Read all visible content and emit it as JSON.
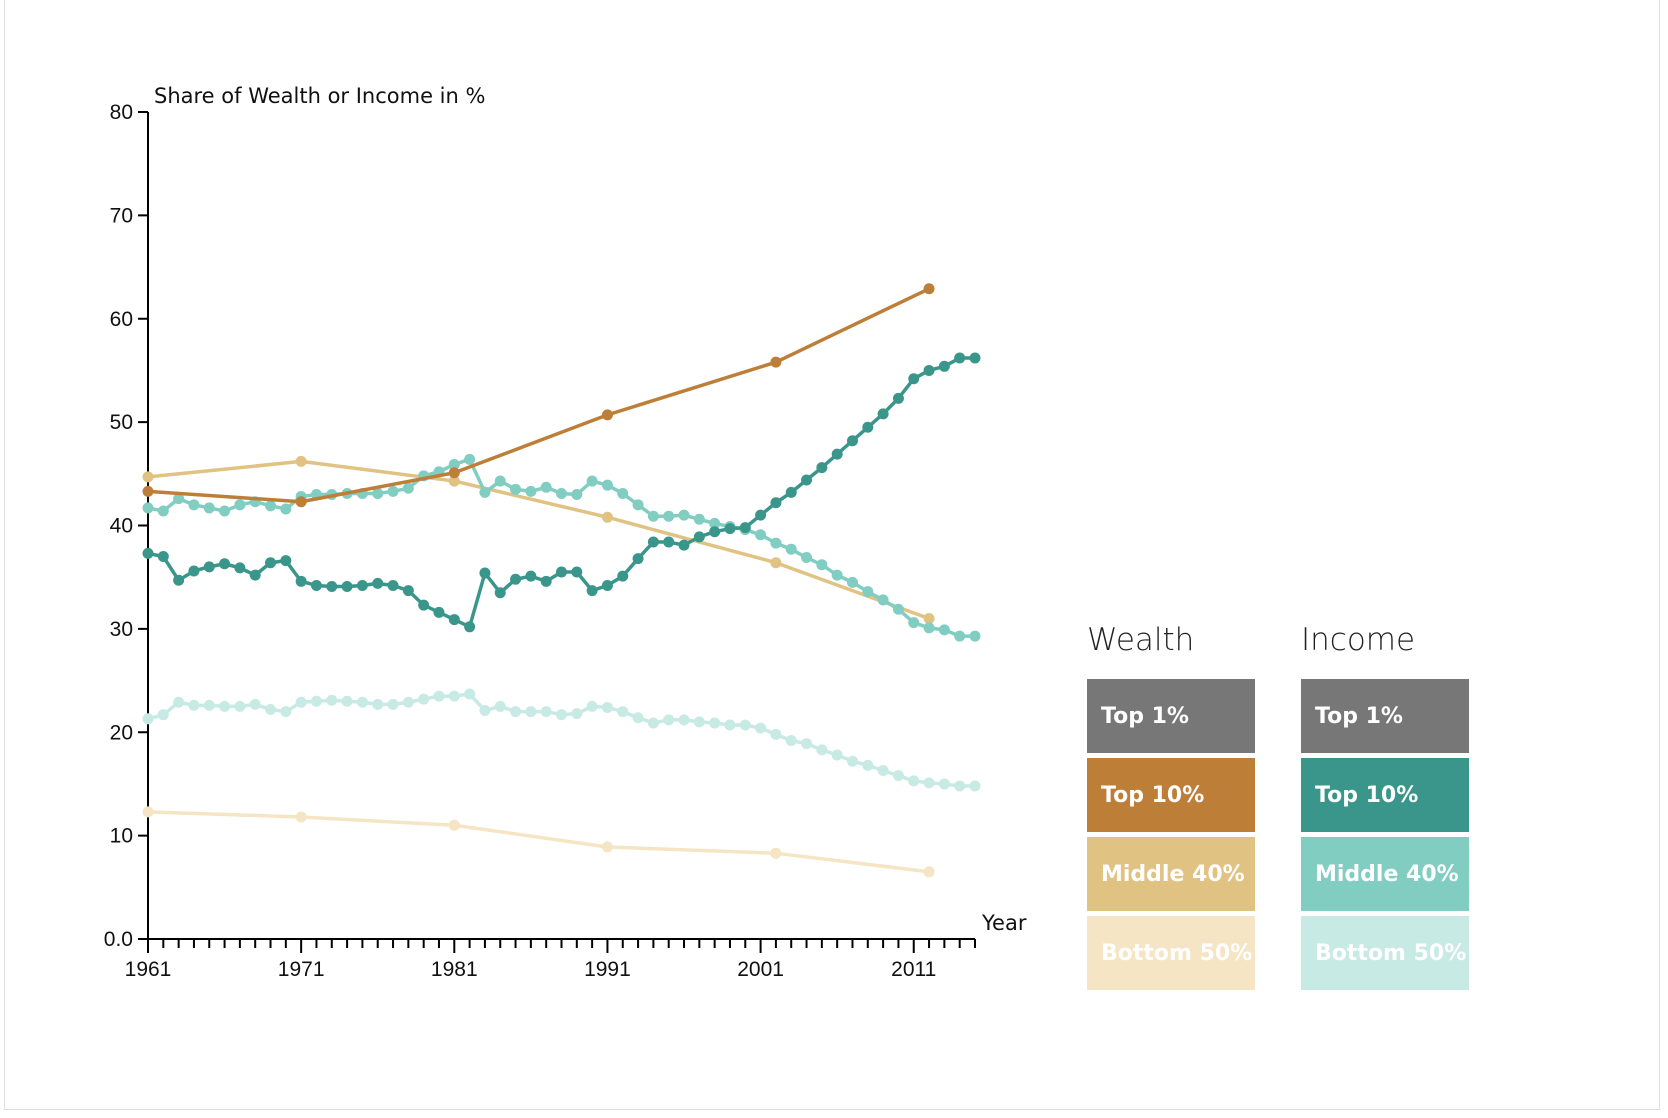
{
  "chart_data": {
    "type": "line",
    "ylabel": "Share of Wealth or Income in %",
    "xlabel": "Year",
    "ylim": [
      0,
      80
    ],
    "xlim": [
      1961,
      2015
    ],
    "y_ticks": [
      "0.0",
      "10",
      "20",
      "30",
      "40",
      "50",
      "60",
      "70",
      "80"
    ],
    "x_ticks": [
      "1961",
      "1971",
      "1981",
      "1991",
      "2001",
      "2011"
    ],
    "series": [
      {
        "name": "Wealth Middle 40%",
        "color": "#e0c283",
        "x": [
          1961,
          1971,
          1981,
          1991,
          2002,
          2012
        ],
        "y": [
          44.7,
          46.2,
          44.3,
          40.8,
          36.4,
          31.0
        ]
      },
      {
        "name": "Wealth Top 10%",
        "color": "#bd7f38",
        "x": [
          1961,
          1971,
          1981,
          1991,
          2002,
          2012
        ],
        "y": [
          43.3,
          42.3,
          45.1,
          50.7,
          55.8,
          62.9
        ]
      },
      {
        "name": "Wealth Bottom 50%",
        "color": "#f5e5c4",
        "x": [
          1961,
          1971,
          1981,
          1991,
          2002,
          2012
        ],
        "y": [
          12.3,
          11.8,
          11.0,
          8.9,
          8.3,
          6.5
        ]
      },
      {
        "name": "Income Top 10%",
        "color": "#3a968b",
        "x": [
          1961,
          1962,
          1963,
          1964,
          1965,
          1966,
          1967,
          1968,
          1969,
          1970,
          1971,
          1972,
          1973,
          1974,
          1975,
          1976,
          1977,
          1978,
          1979,
          1980,
          1981,
          1982,
          1983,
          1984,
          1985,
          1986,
          1987,
          1988,
          1989,
          1990,
          1991,
          1992,
          1993,
          1994,
          1995,
          1996,
          1997,
          1998,
          1999,
          2000,
          2001,
          2002,
          2003,
          2004,
          2005,
          2006,
          2007,
          2008,
          2009,
          2010,
          2011,
          2012,
          2013,
          2014,
          2015
        ],
        "y": [
          37.3,
          37.0,
          34.7,
          35.6,
          36.0,
          36.3,
          35.9,
          35.2,
          36.4,
          36.6,
          34.6,
          34.2,
          34.1,
          34.1,
          34.2,
          34.4,
          34.2,
          33.7,
          32.3,
          31.6,
          30.9,
          30.2,
          35.4,
          33.5,
          34.8,
          35.1,
          34.6,
          35.5,
          35.5,
          33.7,
          34.2,
          35.1,
          36.8,
          38.4,
          38.4,
          38.1,
          38.9,
          39.4,
          39.7,
          39.8,
          41.0,
          42.2,
          43.2,
          44.4,
          45.6,
          46.9,
          48.2,
          49.5,
          50.8,
          52.3,
          54.2,
          55.0,
          55.4,
          56.2,
          56.2
        ]
      },
      {
        "name": "Income Middle 40%",
        "color": "#82cdc2",
        "x": [
          1961,
          1962,
          1963,
          1964,
          1965,
          1966,
          1967,
          1968,
          1969,
          1970,
          1971,
          1972,
          1973,
          1974,
          1975,
          1976,
          1977,
          1978,
          1979,
          1980,
          1981,
          1982,
          1983,
          1984,
          1985,
          1986,
          1987,
          1988,
          1989,
          1990,
          1991,
          1992,
          1993,
          1994,
          1995,
          1996,
          1997,
          1998,
          1999,
          2000,
          2001,
          2002,
          2003,
          2004,
          2005,
          2006,
          2007,
          2008,
          2009,
          2010,
          2011,
          2012,
          2013,
          2014,
          2015
        ],
        "y": [
          41.7,
          41.4,
          42.6,
          42.0,
          41.7,
          41.4,
          42.0,
          42.3,
          41.9,
          41.6,
          42.8,
          43.0,
          43.0,
          43.1,
          43.1,
          43.1,
          43.3,
          43.6,
          44.8,
          45.2,
          45.9,
          46.4,
          43.2,
          44.3,
          43.5,
          43.3,
          43.7,
          43.1,
          43.0,
          44.3,
          43.9,
          43.1,
          42.0,
          40.9,
          40.9,
          41.0,
          40.6,
          40.2,
          39.9,
          39.6,
          39.1,
          38.3,
          37.7,
          36.9,
          36.2,
          35.2,
          34.5,
          33.6,
          32.8,
          31.9,
          30.6,
          30.1,
          29.9,
          29.3,
          29.3
        ]
      },
      {
        "name": "Income Bottom 50%",
        "color": "#c8eae4",
        "x": [
          1961,
          1962,
          1963,
          1964,
          1965,
          1966,
          1967,
          1968,
          1969,
          1970,
          1971,
          1972,
          1973,
          1974,
          1975,
          1976,
          1977,
          1978,
          1979,
          1980,
          1981,
          1982,
          1983,
          1984,
          1985,
          1986,
          1987,
          1988,
          1989,
          1990,
          1991,
          1992,
          1993,
          1994,
          1995,
          1996,
          1997,
          1998,
          1999,
          2000,
          2001,
          2002,
          2003,
          2004,
          2005,
          2006,
          2007,
          2008,
          2009,
          2010,
          2011,
          2012,
          2013,
          2014,
          2015
        ],
        "y": [
          21.3,
          21.7,
          22.9,
          22.6,
          22.6,
          22.5,
          22.5,
          22.7,
          22.2,
          22.0,
          22.9,
          23.0,
          23.1,
          23.0,
          22.9,
          22.7,
          22.7,
          22.9,
          23.2,
          23.5,
          23.5,
          23.7,
          22.1,
          22.5,
          22.0,
          22.0,
          22.0,
          21.7,
          21.8,
          22.5,
          22.4,
          22.0,
          21.4,
          20.9,
          21.2,
          21.2,
          21.0,
          20.9,
          20.7,
          20.7,
          20.4,
          19.8,
          19.2,
          18.9,
          18.3,
          17.8,
          17.2,
          16.8,
          16.3,
          15.8,
          15.3,
          15.1,
          15.0,
          14.8,
          14.8
        ]
      }
    ]
  },
  "legend": {
    "wealth": {
      "heading": "Wealth",
      "items": [
        {
          "label": "Top 1%",
          "color": "#777777"
        },
        {
          "label": "Top 10%",
          "color": "#bd7f38"
        },
        {
          "label": "Middle 40%",
          "color": "#e0c283"
        },
        {
          "label": "Bottom 50%",
          "color": "#f5e5c4"
        }
      ]
    },
    "income": {
      "heading": "Income",
      "items": [
        {
          "label": "Top 1%",
          "color": "#777777"
        },
        {
          "label": "Top 10%",
          "color": "#3a968b"
        },
        {
          "label": "Middle 40%",
          "color": "#82cdc2"
        },
        {
          "label": "Bottom 50%",
          "color": "#c8eae4"
        }
      ]
    }
  }
}
